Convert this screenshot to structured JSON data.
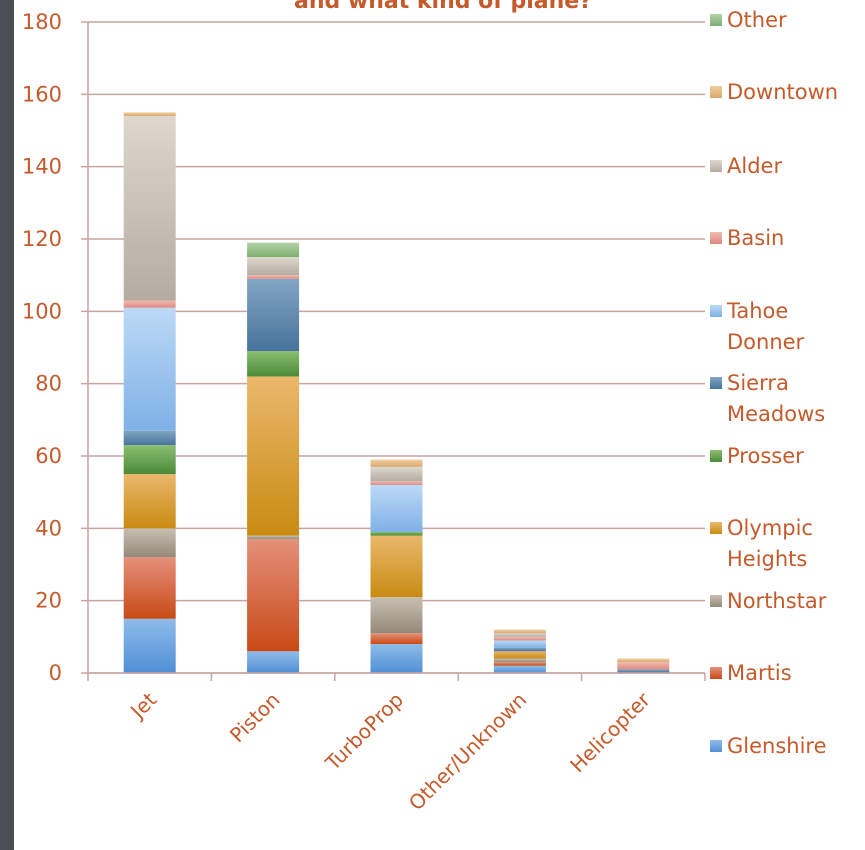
{
  "chart_data": {
    "type": "bar",
    "stacked": true,
    "title": "and what kind of plane?",
    "categories": [
      "Jet",
      "Piston",
      "TurboProp",
      "Other/Unknown",
      "Helicopter"
    ],
    "ylim": [
      0,
      180
    ],
    "yticks": [
      0,
      20,
      40,
      60,
      80,
      100,
      120,
      140,
      160,
      180
    ],
    "grid": true,
    "legend_position": "right",
    "series": [
      {
        "name": "Glenshire",
        "values": [
          15,
          6,
          8,
          2,
          0
        ],
        "color": "#4f8fd6",
        "color2": "#8fbce9"
      },
      {
        "name": "Martis",
        "values": [
          17,
          31,
          3,
          1,
          0
        ],
        "color": "#c84a16",
        "color2": "#e4907a"
      },
      {
        "name": "Northstar",
        "values": [
          8,
          1,
          10,
          1,
          0
        ],
        "color": "#958a79",
        "color2": "#c9bfb1"
      },
      {
        "name": "Olympic Heights",
        "values": [
          15,
          44,
          17,
          2,
          0
        ],
        "color": "#c98b12",
        "color2": "#eab86c"
      },
      {
        "name": "Prosser",
        "values": [
          8,
          7,
          1,
          0,
          0
        ],
        "color": "#4a8a38",
        "color2": "#8cbf72"
      },
      {
        "name": "Sierra Meadows",
        "values": [
          4,
          20,
          0,
          1,
          1
        ],
        "color": "#47739a",
        "color2": "#83a6c4"
      },
      {
        "name": "Tahoe Donner",
        "values": [
          34,
          0,
          13,
          2,
          0
        ],
        "color": "#7fb1e6",
        "color2": "#bcd9f6"
      },
      {
        "name": "Basin",
        "values": [
          2,
          1,
          1,
          1,
          2
        ],
        "color": "#dc8a80",
        "color2": "#f0bab2"
      },
      {
        "name": "Alder",
        "values": [
          51,
          5,
          4,
          1,
          0
        ],
        "color": "#b5aca1",
        "color2": "#ddd7ce"
      },
      {
        "name": "Downtown",
        "values": [
          1,
          0,
          2,
          1,
          1
        ],
        "color": "#d9a76f",
        "color2": "#f3cf9f"
      },
      {
        "name": "Other",
        "values": [
          0,
          4,
          0,
          0,
          0
        ],
        "color": "#7fae70",
        "color2": "#b2d2a6"
      }
    ],
    "legend_lines": {
      "Other": [
        "Other"
      ],
      "Downtown": [
        "Downtown"
      ],
      "Alder": [
        "Alder"
      ],
      "Basin": [
        "Basin"
      ],
      "Tahoe Donner": [
        "Tahoe",
        "Donner"
      ],
      "Sierra Meadows": [
        "Sierra",
        "Meadows"
      ],
      "Prosser": [
        "Prosser"
      ],
      "Olympic Heights": [
        "Olympic",
        "Heights"
      ],
      "Northstar": [
        "Northstar"
      ],
      "Martis": [
        "Martis"
      ],
      "Glenshire": [
        "Glenshire"
      ]
    }
  }
}
